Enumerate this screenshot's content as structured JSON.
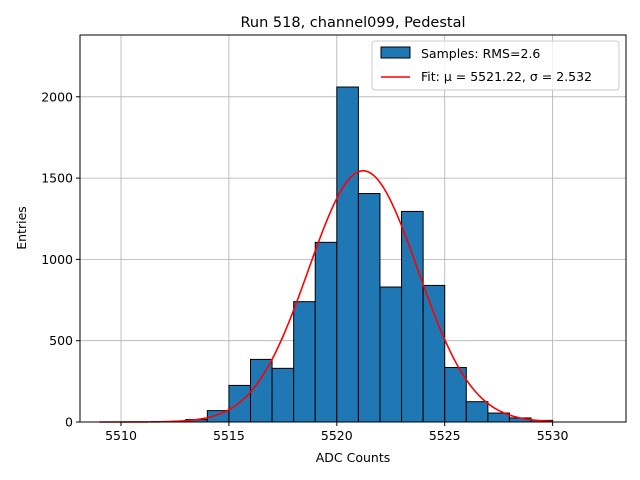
{
  "chart_data": {
    "type": "bar",
    "title": "Run 518, channel099, Pedestal",
    "xlabel": "ADC Counts",
    "ylabel": "Entries",
    "xlim": [
      5508.1,
      5533.4
    ],
    "ylim": [
      0,
      2380
    ],
    "xticks": [
      5510,
      5515,
      5520,
      5525,
      5530
    ],
    "yticks": [
      0,
      500,
      1000,
      1500,
      2000
    ],
    "grid": true,
    "legend_position": "top-right",
    "colors": {
      "bar": "#1f77b4",
      "fit": "#ff0000",
      "grid": "#b0b0b0"
    },
    "histogram": {
      "name": "Samples: RMS=2.6",
      "bin_width": 1,
      "bins": [
        {
          "x": 5512.5,
          "count": 3
        },
        {
          "x": 5513.5,
          "count": 15
        },
        {
          "x": 5514.5,
          "count": 70
        },
        {
          "x": 5515.5,
          "count": 225
        },
        {
          "x": 5516.5,
          "count": 385
        },
        {
          "x": 5517.5,
          "count": 330
        },
        {
          "x": 5518.5,
          "count": 740
        },
        {
          "x": 5519.5,
          "count": 1105
        },
        {
          "x": 5520.5,
          "count": 2060
        },
        {
          "x": 5521.5,
          "count": 1405
        },
        {
          "x": 5522.5,
          "count": 830
        },
        {
          "x": 5523.5,
          "count": 1295
        },
        {
          "x": 5524.5,
          "count": 840
        },
        {
          "x": 5525.5,
          "count": 335
        },
        {
          "x": 5526.5,
          "count": 125
        },
        {
          "x": 5527.5,
          "count": 55
        },
        {
          "x": 5528.5,
          "count": 25
        },
        {
          "x": 5529.5,
          "count": 10
        }
      ]
    },
    "fit": {
      "name": "Fit: μ = 5521.22, σ = 2.532",
      "type": "gaussian",
      "mu": 5521.22,
      "sigma": 2.532,
      "amplitude": 1545,
      "x_range": [
        5509,
        5530
      ]
    }
  }
}
